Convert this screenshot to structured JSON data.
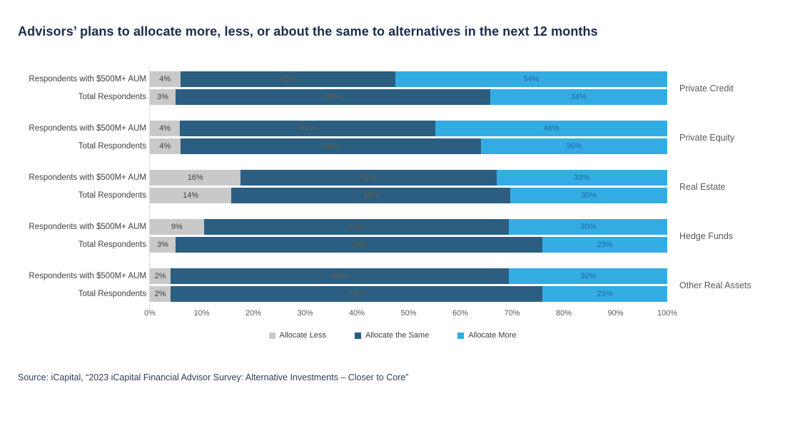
{
  "title": "Advisors’ plans to allocate more, less, or about the same to alternatives in the next 12 months",
  "source": "Source: iCapital, “2023 iCapital Financial Advisor Survey: Alternative Investments – Closer to Core”",
  "legend": [
    {
      "label": "Allocate Less",
      "color": "#C9C9C9"
    },
    {
      "label": "Allocate the Same",
      "color": "#2B5E80"
    },
    {
      "label": "Allocate More",
      "color": "#33ACE3"
    }
  ],
  "chart_data": {
    "type": "bar",
    "orientation": "horizontal",
    "stacked": true,
    "xlim": [
      0,
      100
    ],
    "x_ticks": [
      "0%",
      "10%",
      "20%",
      "30%",
      "40%",
      "50%",
      "60%",
      "70%",
      "80%",
      "90%",
      "100%"
    ],
    "series_names": [
      "Allocate Less",
      "Allocate the Same",
      "Allocate More"
    ],
    "segment_colors": [
      "#C9C9C9",
      "#2B5E80",
      "#33ACE3"
    ],
    "segment_label_colors": [
      "#404040",
      "rgba(110,95,60,0.8)",
      "#2468A5"
    ],
    "row_label_aum": "Respondents with $500M+ AUM",
    "row_label_total": "Total Respondents",
    "groups": [
      {
        "category": "Private Credit",
        "rows": [
          {
            "label": "Respondents with $500M+ AUM",
            "values": [
              4,
              42,
              54
            ]
          },
          {
            "label": "Total Respondents",
            "values": [
              3,
              63,
              34
            ]
          }
        ]
      },
      {
        "category": "Private Equity",
        "rows": [
          {
            "label": "Respondents with $500M+ AUM",
            "values": [
              4,
              51,
              46
            ]
          },
          {
            "label": "Total Respondents",
            "values": [
              4,
              60,
              36
            ]
          }
        ]
      },
      {
        "category": "Real Estate",
        "rows": [
          {
            "label": "Respondents with $500M+ AUM",
            "values": [
              16,
              51,
              33
            ]
          },
          {
            "label": "Total Respondents",
            "values": [
              14,
              56,
              30
            ]
          }
        ]
      },
      {
        "category": "Hedge Funds",
        "rows": [
          {
            "label": "Respondents with $500M+ AUM",
            "values": [
              9,
              61,
              30
            ]
          },
          {
            "label": "Total Respondents",
            "values": [
              3,
              74,
              23
            ]
          }
        ]
      },
      {
        "category": "Other Real Assets",
        "rows": [
          {
            "label": "Respondents with $500M+ AUM",
            "values": [
              2,
              68,
              30
            ]
          },
          {
            "label": "Total Respondents",
            "values": [
              2,
              75,
              23
            ]
          }
        ]
      }
    ]
  }
}
